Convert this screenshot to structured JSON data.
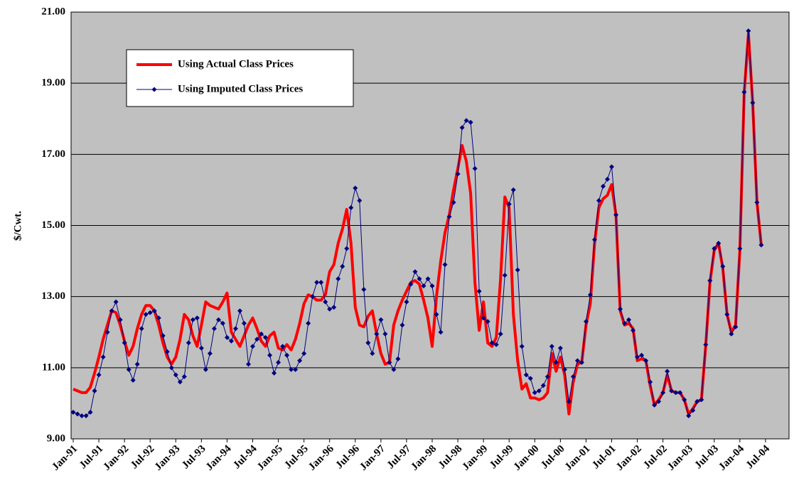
{
  "chart_data": {
    "type": "line",
    "ylabel": "$/Cwt.",
    "ylim": [
      9,
      21
    ],
    "yticks": [
      {
        "value": 9,
        "label": "9.00"
      },
      {
        "value": 11,
        "label": "11.00"
      },
      {
        "value": 13,
        "label": "13.00"
      },
      {
        "value": 15,
        "label": "15.00"
      },
      {
        "value": 17,
        "label": "17.00"
      },
      {
        "value": 19,
        "label": "19.00"
      },
      {
        "value": 21,
        "label": "21.00"
      }
    ],
    "grid": true,
    "legend": "upper left",
    "categories": [
      "Jan-91",
      null,
      null,
      null,
      null,
      null,
      "Jul-91",
      null,
      null,
      null,
      null,
      null,
      "Jan-92",
      null,
      null,
      null,
      null,
      null,
      "Jul-92",
      null,
      null,
      null,
      null,
      null,
      "Jan-93",
      null,
      null,
      null,
      null,
      null,
      "Jul-93",
      null,
      null,
      null,
      null,
      null,
      "Jan-94",
      null,
      null,
      null,
      null,
      null,
      "Jul-94",
      null,
      null,
      null,
      null,
      null,
      "Jan-95",
      null,
      null,
      null,
      null,
      null,
      "Jul-95",
      null,
      null,
      null,
      null,
      null,
      "Jan-96",
      null,
      null,
      null,
      null,
      null,
      "Jul-96",
      null,
      null,
      null,
      null,
      null,
      "Jan-97",
      null,
      null,
      null,
      null,
      null,
      "Jul-97",
      null,
      null,
      null,
      null,
      null,
      "Jan-98",
      null,
      null,
      null,
      null,
      null,
      "Jul-98",
      null,
      null,
      null,
      null,
      null,
      "Jan-99",
      null,
      null,
      null,
      null,
      null,
      "Jul-99",
      null,
      null,
      null,
      null,
      null,
      "Jan-00",
      null,
      null,
      null,
      null,
      null,
      "Jul-00",
      null,
      null,
      null,
      null,
      null,
      "Jan-01",
      null,
      null,
      null,
      null,
      null,
      "Jul-01",
      null,
      null,
      null,
      null,
      null,
      "Jan-02",
      null,
      null,
      null,
      null,
      null,
      "Jul-02",
      null,
      null,
      null,
      null,
      null,
      "Jan-03",
      null,
      null,
      null,
      null,
      null,
      "Jul-03",
      null,
      null,
      null,
      null,
      null,
      "Jan-04",
      null,
      null,
      null,
      null,
      null,
      "Jul-04",
      null,
      null,
      null,
      null,
      null
    ],
    "series": [
      {
        "name": "Using Actual Class Prices",
        "color": "#ff0000",
        "marker": false,
        "values": [
          10.4,
          10.35,
          10.3,
          10.3,
          10.45,
          10.85,
          11.3,
          11.8,
          12.2,
          12.6,
          12.55,
          12.2,
          11.75,
          11.35,
          11.6,
          12.1,
          12.5,
          12.75,
          12.75,
          12.6,
          12.2,
          11.7,
          11.3,
          11.1,
          11.3,
          11.8,
          12.5,
          12.35,
          11.9,
          11.6,
          12.2,
          12.85,
          12.75,
          12.7,
          12.65,
          12.85,
          13.1,
          12.0,
          11.8,
          11.6,
          11.9,
          12.2,
          12.4,
          12.1,
          11.75,
          11.6,
          11.9,
          12.0,
          11.55,
          11.5,
          11.65,
          11.5,
          11.8,
          12.25,
          12.8,
          13.05,
          13.0,
          12.9,
          12.9,
          13.05,
          13.7,
          13.9,
          14.5,
          14.9,
          15.45,
          14.5,
          12.7,
          12.2,
          12.15,
          12.45,
          12.6,
          11.95,
          11.4,
          11.1,
          11.15,
          12.2,
          12.6,
          12.9,
          13.15,
          13.4,
          13.45,
          13.35,
          12.9,
          12.4,
          11.6,
          13.0,
          14.0,
          14.8,
          15.3,
          16.0,
          16.6,
          17.25,
          16.8,
          15.9,
          13.4,
          12.05,
          12.85,
          11.7,
          11.6,
          11.85,
          13.5,
          15.8,
          15.5,
          12.5,
          11.2,
          10.4,
          10.55,
          10.15,
          10.15,
          10.1,
          10.15,
          10.3,
          11.4,
          10.9,
          11.3,
          10.8,
          9.7,
          10.6,
          11.1,
          11.15,
          12.2,
          12.8,
          14.5,
          15.5,
          15.75,
          15.85,
          16.15,
          15.3,
          12.6,
          12.2,
          12.25,
          12.1,
          11.2,
          11.25,
          11.2,
          10.5,
          9.95,
          10.1,
          10.3,
          10.8,
          10.35,
          10.3,
          10.3,
          10.1,
          9.7,
          9.85,
          10.05,
          10.1,
          11.6,
          13.4,
          14.3,
          14.5,
          13.8,
          12.5,
          12.0,
          12.2,
          14.3,
          18.7,
          20.4,
          18.45,
          15.65,
          14.45,
          null,
          null,
          null,
          null,
          null,
          null
        ]
      },
      {
        "name": "Using Imputed Class Prices",
        "color": "#000080",
        "marker": true,
        "values": [
          9.75,
          9.7,
          9.65,
          9.65,
          9.75,
          10.35,
          10.8,
          11.3,
          12.0,
          12.6,
          12.85,
          12.35,
          11.7,
          10.95,
          10.65,
          11.1,
          12.1,
          12.5,
          12.55,
          12.6,
          12.4,
          11.9,
          11.45,
          11.0,
          10.8,
          10.6,
          10.75,
          11.7,
          12.35,
          12.4,
          11.55,
          10.95,
          11.4,
          12.1,
          12.35,
          12.25,
          11.85,
          11.75,
          12.1,
          12.6,
          12.25,
          11.1,
          11.6,
          11.8,
          11.95,
          11.85,
          11.35,
          10.85,
          11.15,
          11.6,
          11.35,
          10.95,
          10.95,
          11.2,
          11.4,
          12.25,
          13.0,
          13.4,
          13.4,
          12.85,
          12.65,
          12.7,
          13.5,
          13.85,
          14.35,
          15.5,
          16.05,
          15.7,
          13.2,
          11.7,
          11.4,
          11.95,
          12.35,
          11.95,
          11.15,
          10.95,
          11.25,
          12.2,
          12.85,
          13.35,
          13.7,
          13.5,
          13.3,
          13.5,
          13.3,
          12.5,
          12.0,
          13.9,
          15.25,
          15.65,
          16.45,
          17.75,
          17.95,
          17.9,
          16.6,
          13.15,
          12.4,
          12.3,
          11.7,
          11.65,
          11.95,
          13.6,
          15.6,
          16.0,
          13.75,
          11.6,
          10.8,
          10.7,
          10.3,
          10.35,
          10.5,
          10.75,
          11.6,
          11.15,
          11.55,
          10.95,
          10.05,
          10.75,
          11.2,
          11.15,
          12.3,
          13.05,
          14.6,
          15.7,
          16.1,
          16.3,
          16.65,
          15.3,
          12.65,
          12.25,
          12.35,
          12.05,
          11.3,
          11.35,
          11.2,
          10.6,
          9.95,
          10.05,
          10.3,
          10.9,
          10.35,
          10.3,
          10.3,
          10.1,
          9.65,
          9.8,
          10.05,
          10.1,
          11.65,
          13.45,
          14.35,
          14.5,
          13.85,
          12.5,
          11.95,
          12.15,
          14.35,
          18.75,
          20.47,
          18.45,
          15.65,
          14.45,
          null,
          null,
          null,
          null,
          null,
          null
        ]
      }
    ]
  }
}
